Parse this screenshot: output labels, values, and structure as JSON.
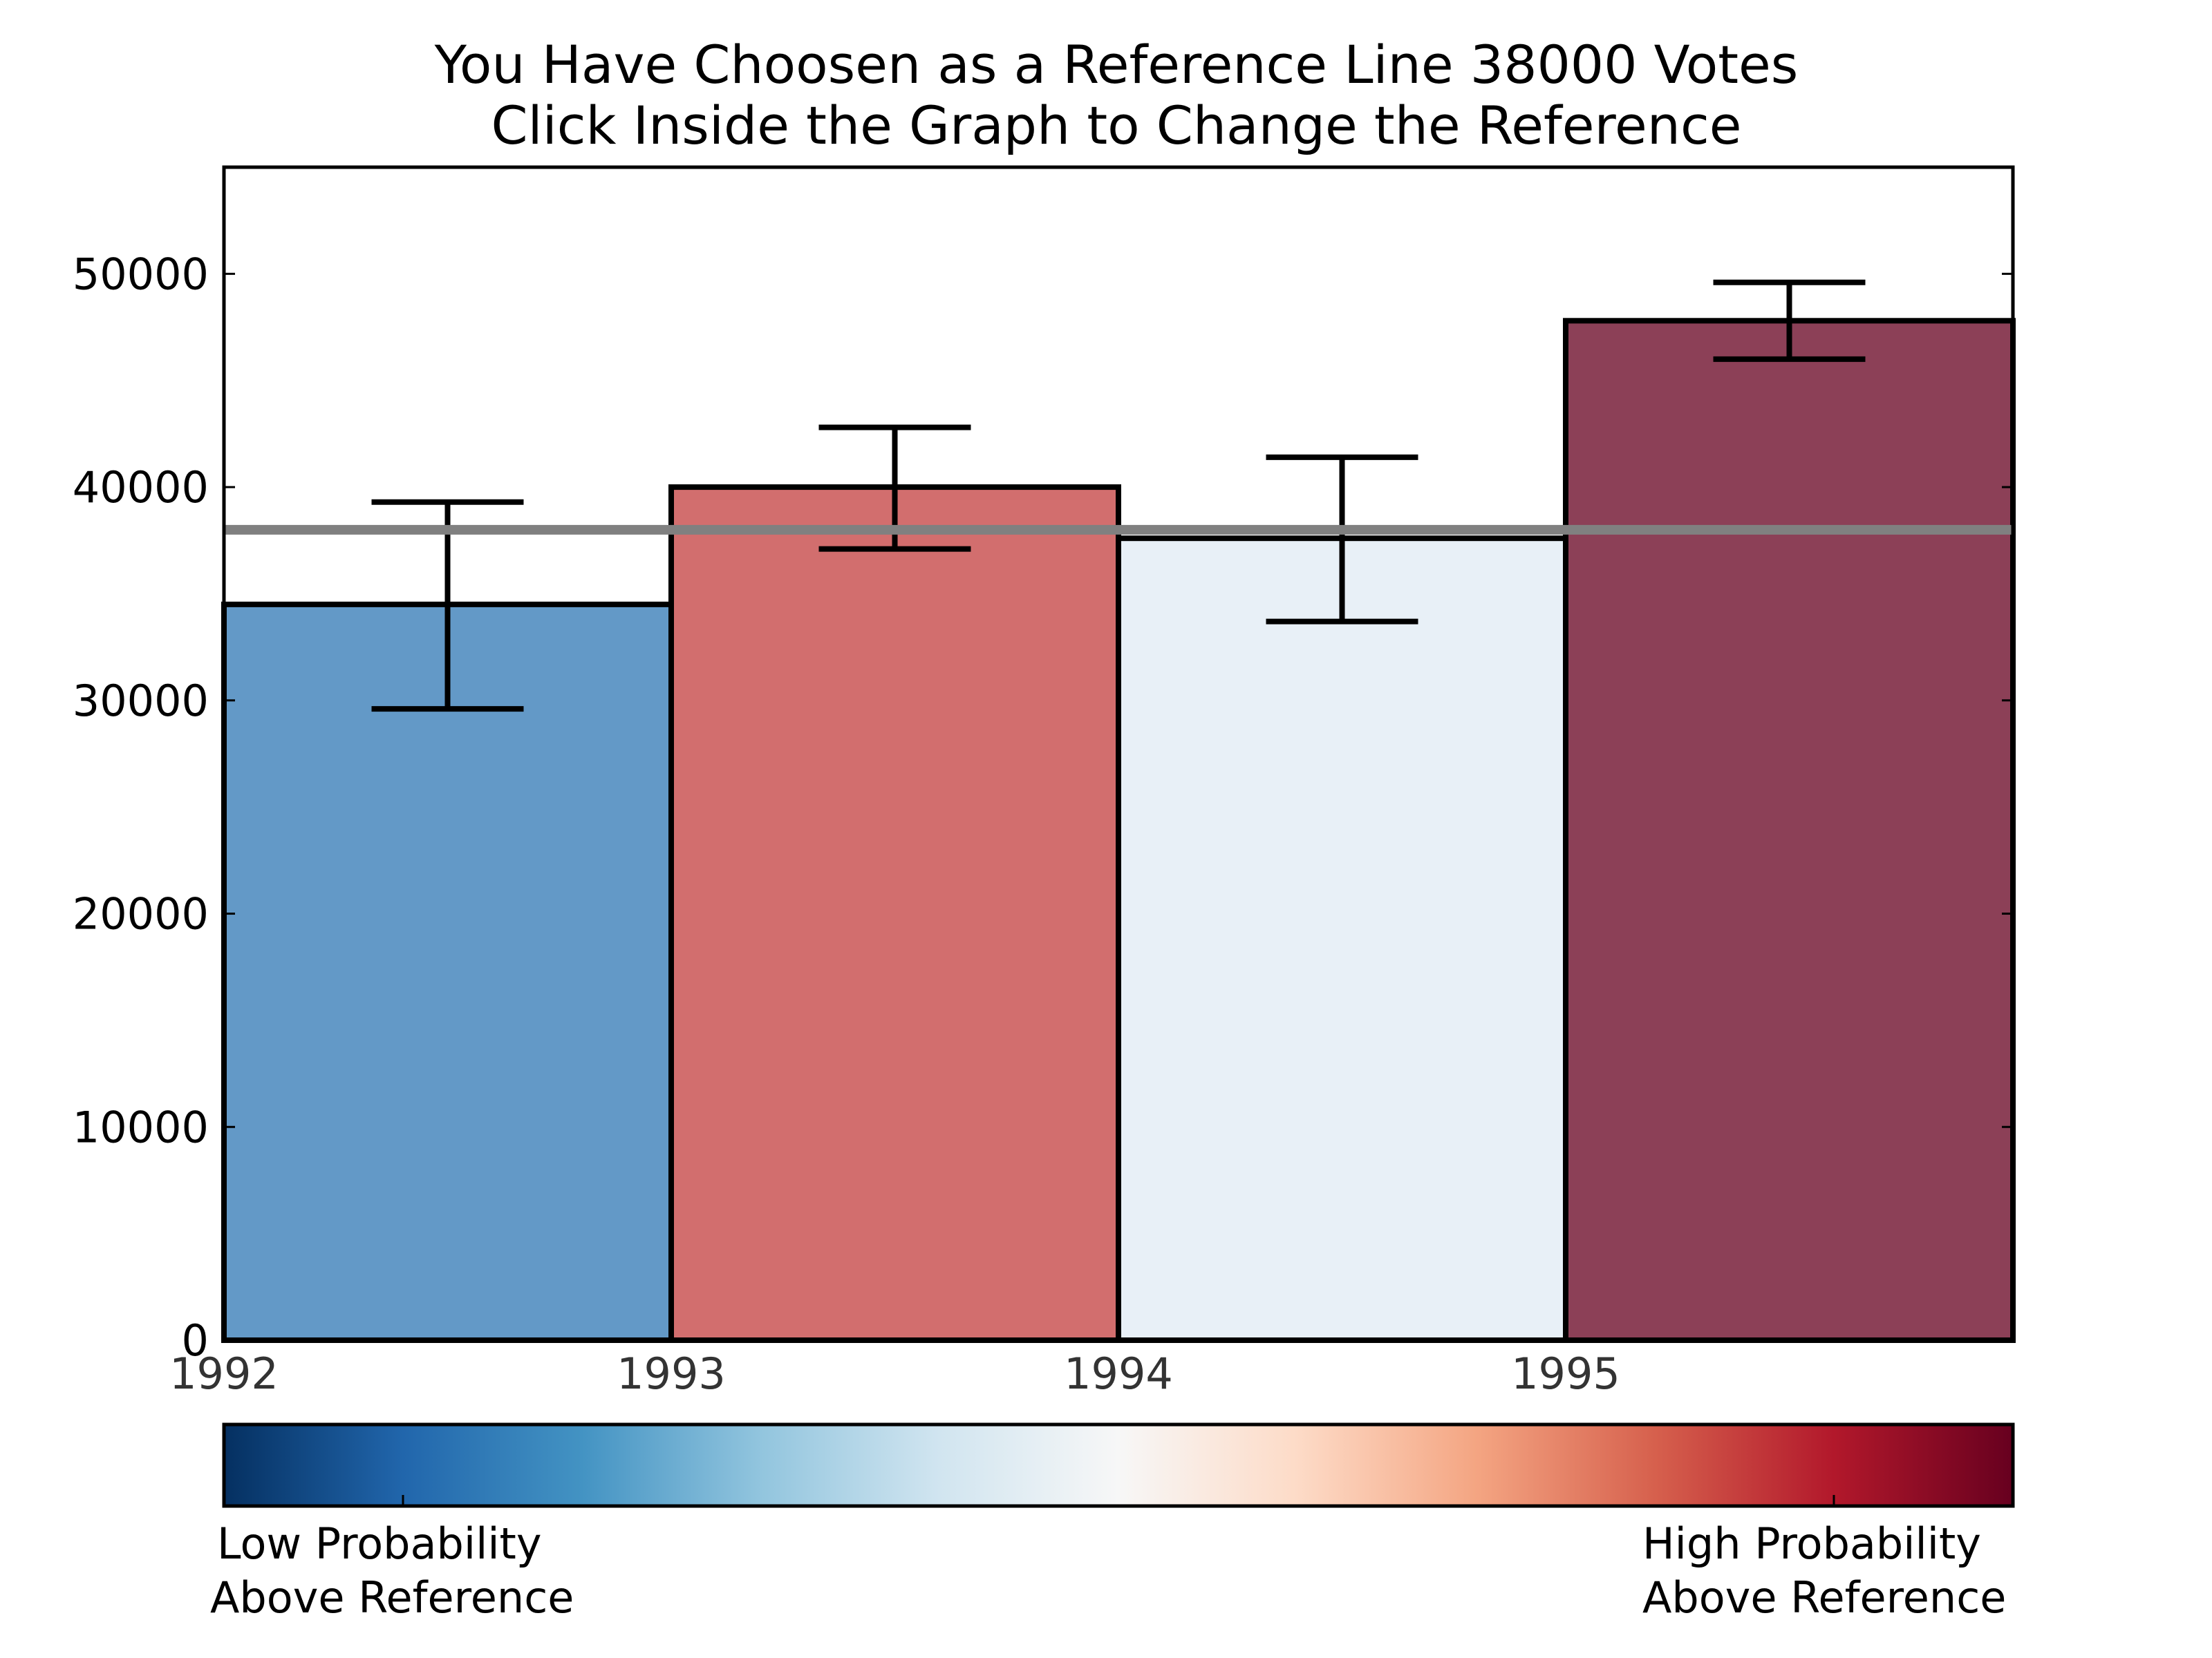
{
  "chart_data": {
    "type": "bar",
    "title_line1": "You Have Choosen as a Reference Line 38000 Votes",
    "title_line2": "Click Inside the Graph to Change the Reference",
    "xlabel": "",
    "ylabel": "",
    "x_tick_labels": [
      "1992",
      "1993",
      "1994",
      "1995"
    ],
    "x_range": [
      1992,
      1996
    ],
    "ylim": [
      0,
      55000
    ],
    "y_ticks": [
      0,
      10000,
      20000,
      30000,
      40000,
      50000
    ],
    "y_tick_labels": [
      "0",
      "10000",
      "20000",
      "30000",
      "40000",
      "50000"
    ],
    "reference_line": 38000,
    "reference_color": "#808080",
    "bars": [
      {
        "x": 1992,
        "value": 34500,
        "err_low": 29600,
        "err_high": 39300,
        "color": "#6399c7"
      },
      {
        "x": 1993,
        "value": 40000,
        "err_low": 37100,
        "err_high": 42800,
        "color": "#d26e6e"
      },
      {
        "x": 1994,
        "value": 37600,
        "err_low": 33700,
        "err_high": 41400,
        "color": "#e8f0f7"
      },
      {
        "x": 1995,
        "value": 47800,
        "err_low": 46000,
        "err_high": 49600,
        "color": "#8c4057"
      }
    ],
    "grid": false,
    "legend": "none",
    "colorbar": {
      "left_label_line1": "Low Probability",
      "left_label_line2": "Above Reference",
      "right_label_line1": "High Probability",
      "right_label_line2": "Above Reference",
      "stops": [
        "#053061",
        "#2166ac",
        "#4393c3",
        "#92c5de",
        "#d1e5f0",
        "#f7f7f7",
        "#fddbc7",
        "#f4a582",
        "#d6604d",
        "#b2182b",
        "#67001f"
      ]
    }
  }
}
